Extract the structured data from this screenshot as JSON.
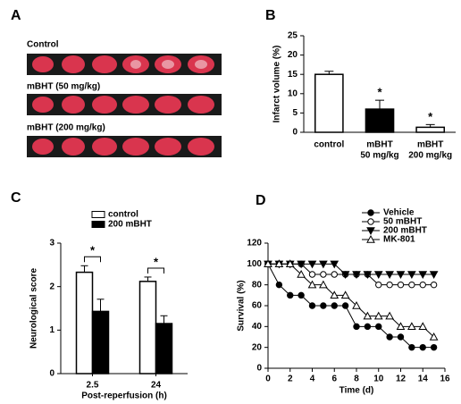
{
  "panel_a": {
    "letter": "A",
    "labels": [
      "Control",
      "mBHT (50 mg/kg)",
      "mBHT (200 mg/kg)"
    ]
  },
  "chart_data": [
    {
      "type": "bar",
      "panel": "B",
      "ylabel": "Infarct volume (%)",
      "categories": [
        [
          "control"
        ],
        [
          "mBHT",
          "50 mg/kg"
        ],
        [
          "mBHT",
          "200 mg/kg"
        ]
      ],
      "values": [
        15,
        6,
        1.3
      ],
      "errors": [
        0.8,
        2.3,
        0.7
      ],
      "colors": [
        "#ffffff",
        "#000000",
        "#ffffff"
      ],
      "value_annotations": [
        null,
        "*",
        "*"
      ],
      "ylim": [
        0,
        25
      ],
      "yticks": [
        0,
        5,
        10,
        15,
        20,
        25
      ]
    },
    {
      "type": "grouped_bar",
      "panel": "C",
      "ylabel": "Neurological score",
      "xlabel": "Post-reperfusion (h)",
      "categories": [
        "2.5",
        "24"
      ],
      "series": [
        {
          "name": "control",
          "color": "#ffffff",
          "values": [
            2.33,
            2.12
          ],
          "errors": [
            0.15,
            0.1
          ]
        },
        {
          "name": "200 mBHT",
          "color": "#000000",
          "values": [
            1.43,
            1.15
          ],
          "errors": [
            0.28,
            0.18
          ]
        }
      ],
      "significance": [
        "*",
        "*"
      ],
      "ylim": [
        0,
        3
      ],
      "yticks": [
        0,
        1,
        2,
        3
      ]
    },
    {
      "type": "line",
      "panel": "D",
      "ylabel": "Survival (%)",
      "xlabel": "Time (d)",
      "x": [
        0,
        1,
        2,
        3,
        4,
        5,
        6,
        7,
        8,
        9,
        10,
        11,
        12,
        13,
        14,
        15
      ],
      "series": [
        {
          "name": "Vehicle",
          "color": "#000000",
          "marker": "circle-filled",
          "values": [
            100,
            80,
            70,
            70,
            60,
            60,
            60,
            60,
            40,
            40,
            40,
            30,
            30,
            20,
            20,
            20
          ]
        },
        {
          "name": "50 mBHT",
          "color": "#000000",
          "marker": "circle-open",
          "values": [
            100,
            100,
            100,
            100,
            90,
            90,
            90,
            90,
            90,
            90,
            80,
            80,
            80,
            80,
            80,
            80
          ]
        },
        {
          "name": "200 mBHT",
          "color": "#000000",
          "marker": "triangle-down-filled",
          "values": [
            100,
            100,
            100,
            100,
            100,
            100,
            100,
            90,
            90,
            90,
            90,
            90,
            90,
            90,
            90,
            90
          ]
        },
        {
          "name": "MK-801",
          "color": "#000000",
          "marker": "triangle-up-open",
          "values": [
            100,
            100,
            100,
            90,
            80,
            80,
            70,
            70,
            60,
            50,
            50,
            50,
            40,
            40,
            40,
            30
          ]
        }
      ],
      "xlim": [
        0,
        16
      ],
      "xticks": [
        0,
        2,
        4,
        6,
        8,
        10,
        12,
        14,
        16
      ],
      "ylim": [
        0,
        120
      ],
      "yticks": [
        0,
        20,
        40,
        60,
        80,
        100,
        120
      ]
    }
  ]
}
